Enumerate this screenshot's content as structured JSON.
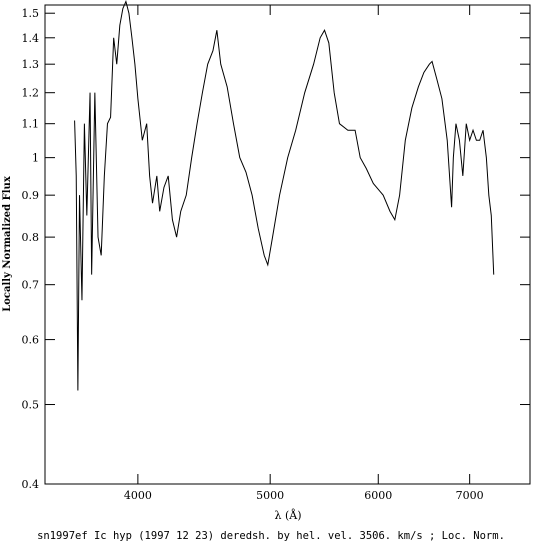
{
  "chart_data": {
    "type": "line",
    "caption": "sn1997ef Ic hyp (1997 12 23) deredsh. by hel. vel.  3506. km/s ;  Loc. Norm.",
    "x_label": "λ (Å)",
    "y_label": "Locally Normalized Flux",
    "xscale": "log",
    "yscale": "log",
    "xlim": [
      3420,
      7750
    ],
    "ylim": [
      0.4,
      1.535
    ],
    "xticks": [
      4000,
      5000,
      6000,
      7000
    ],
    "yticks": [
      0.4,
      0.5,
      0.6,
      0.7,
      0.8,
      0.9,
      1,
      1.1,
      1.2,
      1.3,
      1.4,
      1.5
    ],
    "color": "#000000",
    "x": [
      3595,
      3605,
      3615,
      3625,
      3640,
      3655,
      3670,
      3690,
      3700,
      3720,
      3740,
      3760,
      3780,
      3800,
      3820,
      3840,
      3860,
      3880,
      3900,
      3920,
      3940,
      3960,
      3980,
      4000,
      4030,
      4060,
      4080,
      4100,
      4130,
      4150,
      4180,
      4210,
      4240,
      4270,
      4300,
      4340,
      4380,
      4420,
      4460,
      4500,
      4540,
      4570,
      4600,
      4650,
      4700,
      4750,
      4800,
      4850,
      4900,
      4950,
      4980,
      5020,
      5080,
      5150,
      5220,
      5300,
      5380,
      5440,
      5480,
      5520,
      5570,
      5620,
      5700,
      5770,
      5820,
      5880,
      5950,
      6050,
      6120,
      6170,
      6220,
      6280,
      6350,
      6420,
      6480,
      6540,
      6570,
      6620,
      6680,
      6740,
      6790,
      6810,
      6840,
      6880,
      6920,
      6960,
      7000,
      7040,
      7080,
      7120,
      7160,
      7200,
      7230,
      7260,
      7290
    ],
    "values": [
      1.11,
      0.95,
      0.52,
      0.9,
      0.67,
      1.1,
      0.85,
      1.2,
      0.72,
      1.2,
      0.8,
      0.76,
      0.95,
      1.1,
      1.12,
      1.4,
      1.3,
      1.45,
      1.52,
      1.55,
      1.5,
      1.4,
      1.3,
      1.18,
      1.05,
      1.1,
      0.95,
      0.88,
      0.95,
      0.86,
      0.92,
      0.95,
      0.84,
      0.8,
      0.86,
      0.9,
      1.0,
      1.1,
      1.2,
      1.3,
      1.35,
      1.43,
      1.3,
      1.22,
      1.1,
      1.0,
      0.96,
      0.9,
      0.82,
      0.76,
      0.74,
      0.8,
      0.9,
      1.0,
      1.08,
      1.2,
      1.3,
      1.4,
      1.43,
      1.38,
      1.2,
      1.1,
      1.08,
      1.08,
      1.0,
      0.97,
      0.93,
      0.9,
      0.86,
      0.84,
      0.9,
      1.05,
      1.15,
      1.22,
      1.27,
      1.3,
      1.31,
      1.25,
      1.18,
      1.05,
      0.87,
      1.0,
      1.1,
      1.05,
      0.95,
      1.1,
      1.05,
      1.08,
      1.05,
      1.05,
      1.08,
      1.0,
      0.9,
      0.85,
      0.72
    ]
  }
}
